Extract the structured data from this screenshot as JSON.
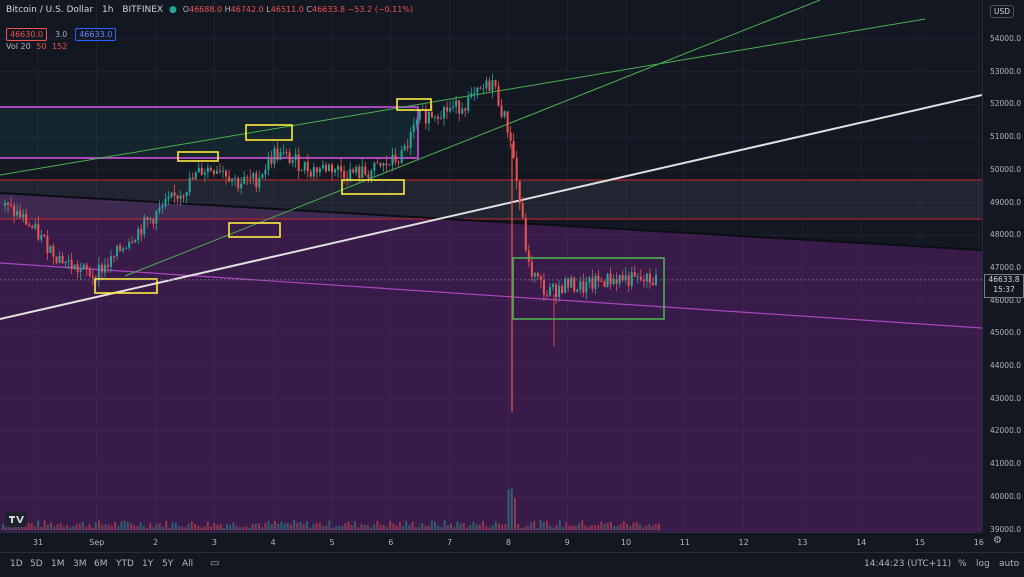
{
  "legend": {
    "symbol": "Bitcoin / U.S. Dollar",
    "interval": "1h",
    "exchange": "BITFINEX",
    "open_label": "O",
    "open": "46688.0",
    "high_label": "H",
    "high": "46742.0",
    "low_label": "L",
    "low": "46511.0",
    "close_label": "C",
    "close": "46633.8",
    "change": "−53.2 (−0.11%)",
    "sell_price": "46630.0",
    "spread": "3.0",
    "buy_price": "46633.0",
    "vol_label": "Vol 20",
    "vol_a": "50",
    "vol_b": "152"
  },
  "currency_button": "USD",
  "last_price": {
    "value": "46633.8",
    "countdown": "15:37"
  },
  "price_ticks": [
    "54000.0",
    "53000.0",
    "52000.0",
    "51000.0",
    "50000.0",
    "49000.0",
    "48000.0",
    "47000.0",
    "46000.0",
    "45000.0",
    "44000.0",
    "43000.0",
    "42000.0",
    "41000.0",
    "40000.0",
    "39000.0"
  ],
  "time_ticks": [
    "31",
    "Sep",
    "2",
    "3",
    "4",
    "5",
    "6",
    "7",
    "8",
    "9",
    "10",
    "11",
    "12",
    "13",
    "14",
    "15",
    "16"
  ],
  "ranges": [
    "1D",
    "5D",
    "1M",
    "3M",
    "6M",
    "YTD",
    "1Y",
    "5Y",
    "All"
  ],
  "clock": "14:44:23 (UTC+11)",
  "axis_opts": {
    "percent": "%",
    "log": "log",
    "auto": "auto"
  },
  "colors": {
    "up": "#26a69a",
    "down": "#ef5350",
    "purple_zone": "#9c27b0",
    "yellow_box": "#ffeb3b",
    "green_line": "#4caf50"
  },
  "chart_data": {
    "type": "candlestick",
    "ylim": [
      38800,
      54700
    ],
    "x": [
      "31",
      "Sep",
      "2",
      "3",
      "4",
      "5",
      "6",
      "7",
      "8",
      "9",
      "10",
      "11",
      "12",
      "13",
      "14",
      "15",
      "16"
    ],
    "close_series": [
      48900,
      48600,
      48000,
      47400,
      47000,
      46800,
      47200,
      47900,
      48400,
      48900,
      49400,
      50000,
      50100,
      49600,
      49700,
      50500,
      50300,
      50000,
      50100,
      49900,
      49900,
      50100,
      50400,
      51600,
      51800,
      51900,
      52200,
      52700,
      51000,
      47000,
      46200,
      46500,
      46400,
      46600,
      46700,
      46600,
      46633.8
    ],
    "last_price": 46633.8
  }
}
